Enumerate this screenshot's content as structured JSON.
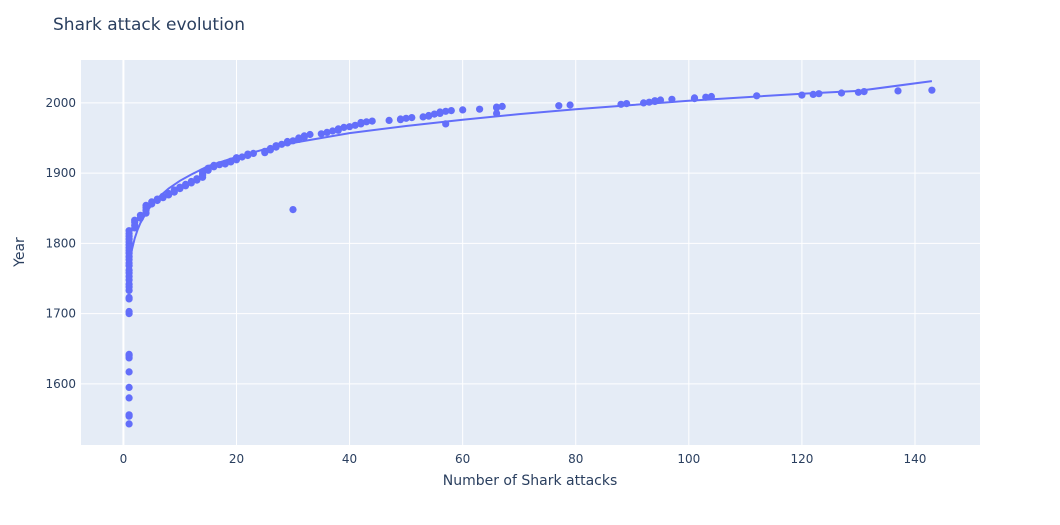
{
  "chart_data": {
    "type": "scatter",
    "title": "Shark attack evolution",
    "xlabel": "Number of Shark attacks",
    "ylabel": "Year",
    "xlim": [
      -7.5,
      151.5
    ],
    "ylim": [
      1513,
      2061
    ],
    "xticks": [
      0,
      20,
      40,
      60,
      80,
      100,
      120,
      140
    ],
    "yticks": [
      1600,
      1700,
      1800,
      1900,
      2000
    ],
    "grid": true,
    "colors": {
      "marker": "#636efa",
      "line": "#636efa",
      "plot_bg": "#e5ecf6",
      "text": "#2a3f5f"
    },
    "series": [
      {
        "mode": "markers",
        "points": [
          [
            1,
            1543
          ],
          [
            1,
            1554
          ],
          [
            1,
            1556
          ],
          [
            1,
            1580
          ],
          [
            1,
            1595
          ],
          [
            1,
            1617
          ],
          [
            1,
            1637
          ],
          [
            1,
            1640
          ],
          [
            1,
            1642
          ],
          [
            1,
            1700
          ],
          [
            1,
            1703
          ],
          [
            1,
            1721
          ],
          [
            1,
            1723
          ],
          [
            1,
            1733
          ],
          [
            1,
            1738
          ],
          [
            1,
            1742
          ],
          [
            1,
            1748
          ],
          [
            1,
            1753
          ],
          [
            1,
            1758
          ],
          [
            1,
            1762
          ],
          [
            1,
            1768
          ],
          [
            1,
            1772
          ],
          [
            1,
            1777
          ],
          [
            1,
            1781
          ],
          [
            1,
            1786
          ],
          [
            1,
            1790
          ],
          [
            1,
            1794
          ],
          [
            1,
            1798
          ],
          [
            1,
            1802
          ],
          [
            1,
            1806
          ],
          [
            1,
            1810
          ],
          [
            1,
            1814
          ],
          [
            1,
            1818
          ],
          [
            2,
            1822
          ],
          [
            2,
            1826
          ],
          [
            2,
            1830
          ],
          [
            2,
            1833
          ],
          [
            3,
            1836
          ],
          [
            3,
            1840
          ],
          [
            4,
            1843
          ],
          [
            4,
            1847
          ],
          [
            4,
            1851
          ],
          [
            4,
            1854
          ],
          [
            5,
            1856
          ],
          [
            5,
            1859
          ],
          [
            6,
            1861
          ],
          [
            6,
            1863
          ],
          [
            7,
            1865
          ],
          [
            7,
            1867
          ],
          [
            8,
            1869
          ],
          [
            8,
            1871
          ],
          [
            9,
            1873
          ],
          [
            9,
            1876
          ],
          [
            10,
            1878
          ],
          [
            10,
            1880
          ],
          [
            11,
            1882
          ],
          [
            11,
            1884
          ],
          [
            12,
            1886
          ],
          [
            12,
            1888
          ],
          [
            13,
            1890
          ],
          [
            13,
            1892
          ],
          [
            14,
            1894
          ],
          [
            14,
            1897
          ],
          [
            14,
            1899
          ],
          [
            14,
            1902
          ],
          [
            15,
            1904
          ],
          [
            15,
            1907
          ],
          [
            16,
            1909
          ],
          [
            16,
            1911
          ],
          [
            17,
            1912
          ],
          [
            18,
            1913
          ],
          [
            18,
            1914
          ],
          [
            19,
            1916
          ],
          [
            19,
            1917
          ],
          [
            20,
            1919
          ],
          [
            20,
            1922
          ],
          [
            21,
            1923
          ],
          [
            22,
            1925
          ],
          [
            22,
            1927
          ],
          [
            23,
            1928
          ],
          [
            25,
            1929
          ],
          [
            25,
            1931
          ],
          [
            26,
            1933
          ],
          [
            26,
            1935
          ],
          [
            27,
            1937
          ],
          [
            27,
            1939
          ],
          [
            28,
            1941
          ],
          [
            29,
            1943
          ],
          [
            29,
            1945
          ],
          [
            30,
            1946
          ],
          [
            31,
            1948
          ],
          [
            31,
            1950
          ],
          [
            32,
            1951
          ],
          [
            32,
            1953
          ],
          [
            33,
            1955
          ],
          [
            35,
            1956
          ],
          [
            36,
            1958
          ],
          [
            37,
            1960
          ],
          [
            38,
            1961
          ],
          [
            38,
            1963
          ],
          [
            39,
            1965
          ],
          [
            40,
            1966
          ],
          [
            41,
            1968
          ],
          [
            42,
            1970
          ],
          [
            42,
            1972
          ],
          [
            43,
            1973
          ],
          [
            44,
            1974
          ],
          [
            47,
            1975
          ],
          [
            49,
            1976
          ],
          [
            49,
            1977
          ],
          [
            50,
            1978
          ],
          [
            51,
            1979
          ],
          [
            53,
            1980
          ],
          [
            54,
            1981
          ],
          [
            54,
            1982
          ],
          [
            55,
            1984
          ],
          [
            56,
            1985
          ],
          [
            56,
            1987
          ],
          [
            57,
            1988
          ],
          [
            58,
            1989
          ],
          [
            60,
            1990
          ],
          [
            63,
            1991
          ],
          [
            66,
            1993
          ],
          [
            66,
            1994
          ],
          [
            67,
            1995
          ],
          [
            77,
            1996
          ],
          [
            79,
            1997
          ],
          [
            88,
            1998
          ],
          [
            89,
            1999
          ],
          [
            92,
            2000
          ],
          [
            93,
            2001
          ],
          [
            94,
            2002
          ],
          [
            94,
            2003
          ],
          [
            95,
            2004
          ],
          [
            97,
            2005
          ],
          [
            101,
            2006
          ],
          [
            101,
            2007
          ],
          [
            103,
            2008
          ],
          [
            104,
            2009
          ],
          [
            112,
            2010
          ],
          [
            120,
            2011
          ],
          [
            122,
            2012
          ],
          [
            123,
            2013
          ],
          [
            127,
            2014
          ],
          [
            130,
            2015
          ],
          [
            131,
            2016
          ],
          [
            137,
            2017
          ],
          [
            143,
            2018
          ],
          [
            30,
            1848
          ],
          [
            57,
            1970
          ],
          [
            66,
            1985
          ]
        ]
      },
      {
        "mode": "lines",
        "points": [
          [
            0.7,
            1743
          ],
          [
            0.8,
            1752
          ],
          [
            1,
            1766
          ],
          [
            1.2,
            1777
          ],
          [
            1.5,
            1791
          ],
          [
            2,
            1807
          ],
          [
            2.5,
            1819
          ],
          [
            3,
            1829
          ],
          [
            4,
            1843
          ],
          [
            5,
            1855
          ],
          [
            6,
            1864
          ],
          [
            8,
            1878
          ],
          [
            10,
            1889
          ],
          [
            12,
            1898
          ],
          [
            15,
            1910
          ],
          [
            20,
            1923
          ],
          [
            25,
            1934
          ],
          [
            30,
            1943
          ],
          [
            35,
            1950
          ],
          [
            40,
            1957
          ],
          [
            50,
            1967
          ],
          [
            60,
            1976
          ],
          [
            70,
            1984
          ],
          [
            80,
            1991
          ],
          [
            90,
            1997
          ],
          [
            100,
            2003
          ],
          [
            110,
            2008
          ],
          [
            120,
            2013
          ],
          [
            130,
            2017
          ],
          [
            143,
            2031
          ]
        ]
      }
    ]
  }
}
